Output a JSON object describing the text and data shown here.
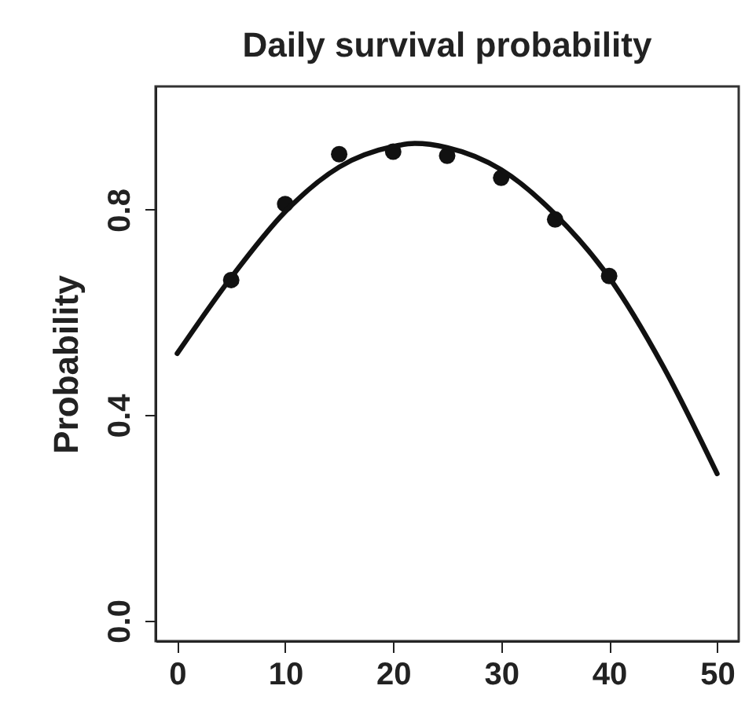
{
  "chart_data": {
    "type": "scatter",
    "title": "Daily survival probability",
    "ylabel": "Probability",
    "xlim": [
      -2,
      52
    ],
    "ylim": [
      -0.04,
      1.04
    ],
    "xticks": [
      0,
      10,
      20,
      30,
      40,
      50
    ],
    "yticks": [
      {
        "value": 0,
        "label": "0.0"
      },
      0.4,
      0.8
    ],
    "grid": false,
    "series": [
      {
        "color": "#111111",
        "marker": "circle",
        "x": [
          5,
          10,
          15,
          20,
          25,
          30,
          35,
          40
        ],
        "values": [
          0.663,
          0.811,
          0.908,
          0.913,
          0.905,
          0.862,
          0.781,
          0.671
        ]
      },
      {
        "type": "line",
        "color": "#111111",
        "marker": "none",
        "line_style": "solid",
        "x": [
          0,
          5,
          10,
          15,
          20,
          22,
          25,
          30,
          35,
          40,
          45,
          50
        ],
        "values": [
          0.52,
          0.668,
          0.796,
          0.883,
          0.923,
          0.929,
          0.921,
          0.878,
          0.791,
          0.668,
          0.495,
          0.286
        ]
      }
    ]
  }
}
